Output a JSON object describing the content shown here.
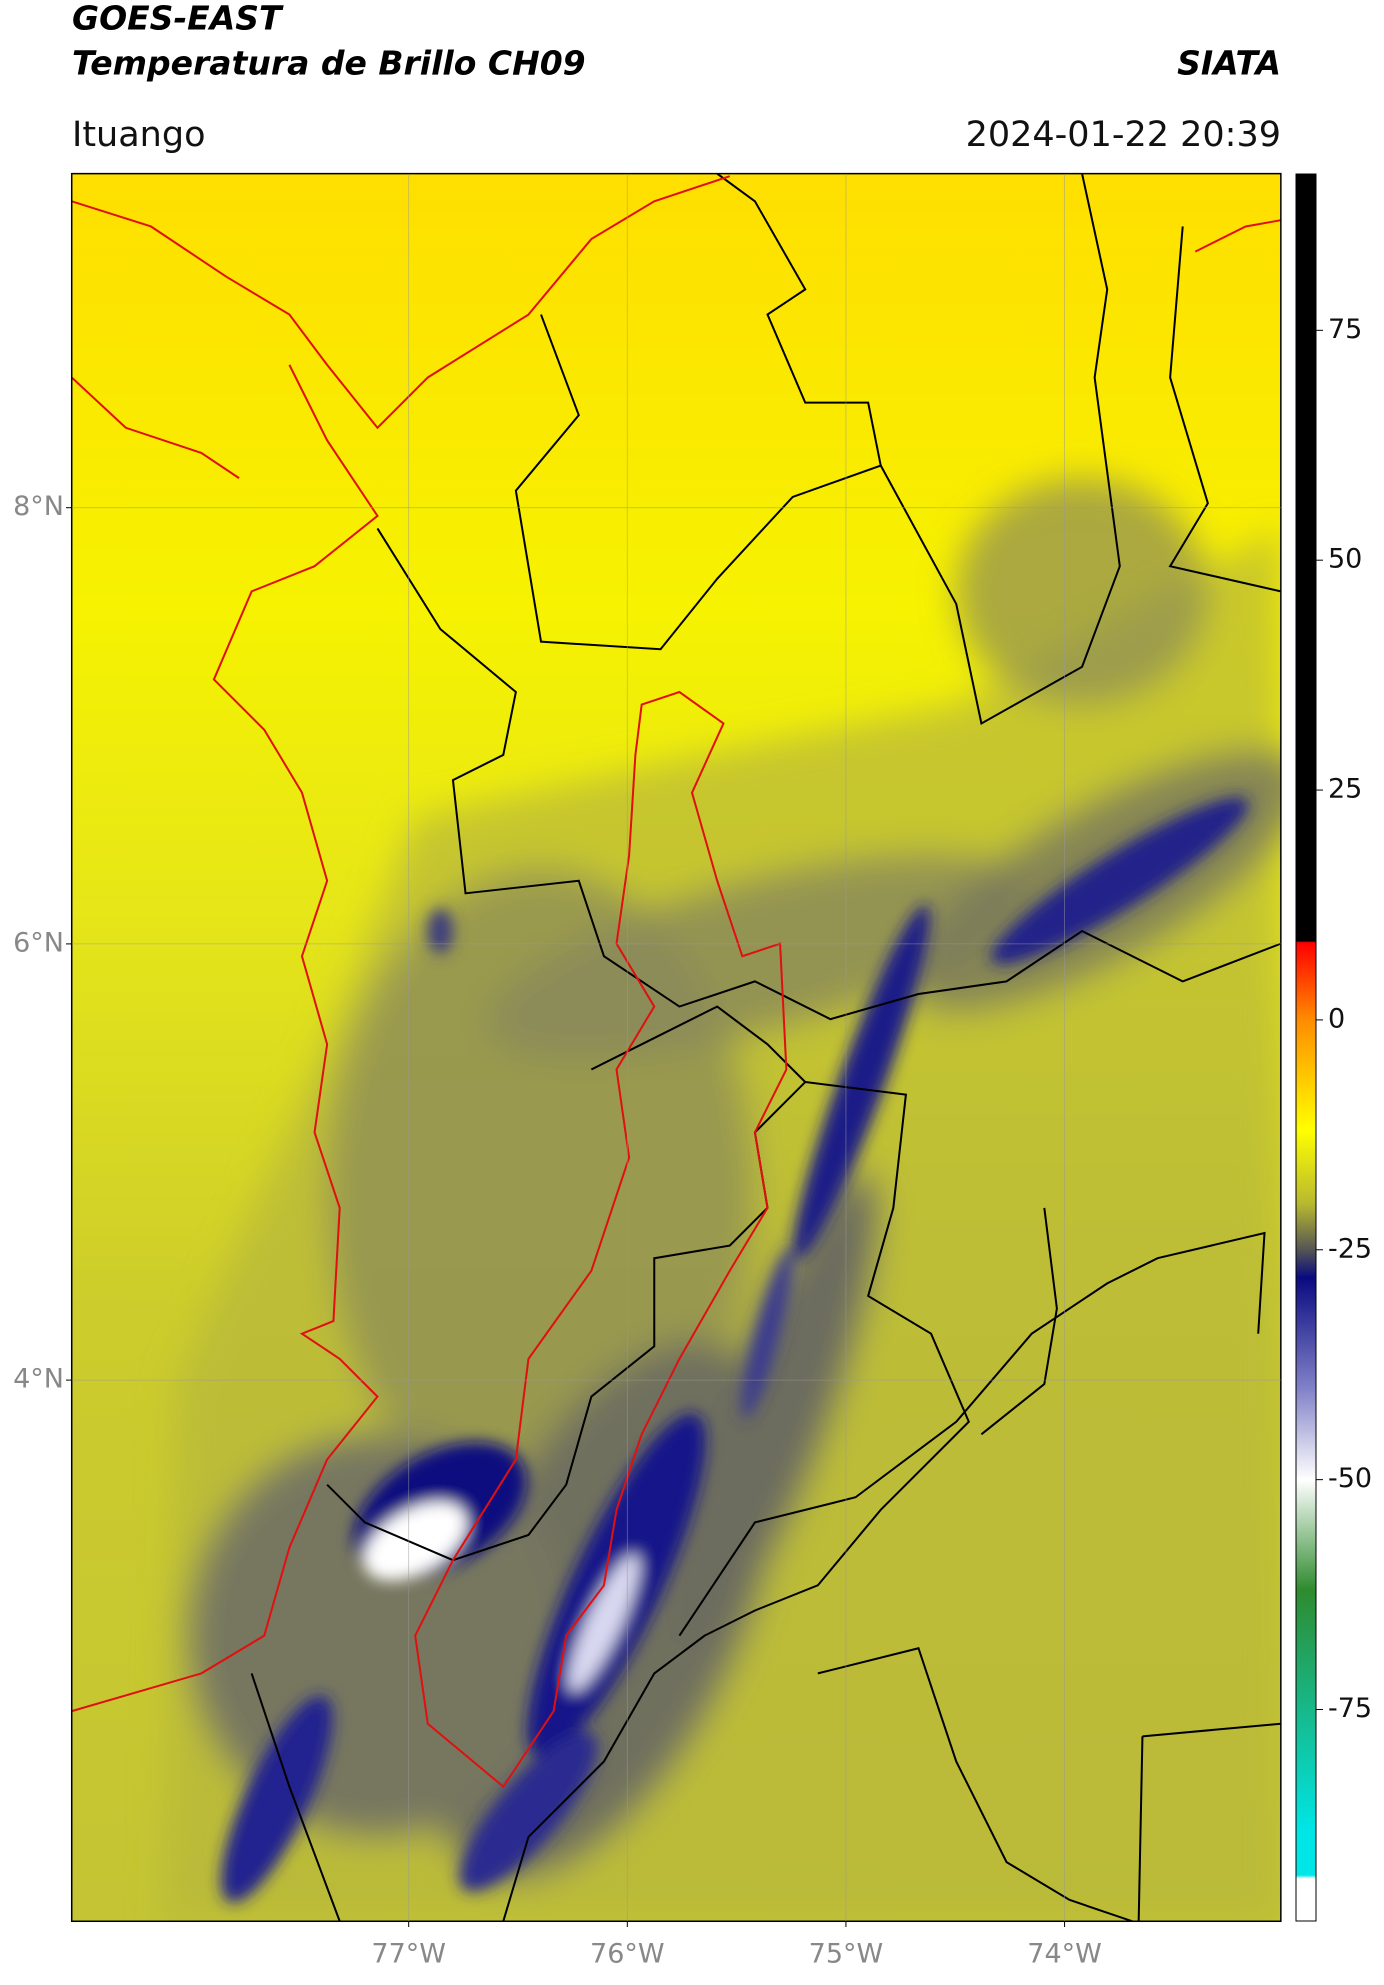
{
  "chart_data": {
    "type": "map",
    "title": "GOES-EAST",
    "subtitle": "Temperatura de Brillo CH09",
    "source": "SIATA",
    "location": "Ituango",
    "timestamp": "2024-01-22 20:39",
    "xlim": [
      -78.54,
      -73.01
    ],
    "xticks": [
      {
        "value": -77,
        "label": "77°W"
      },
      {
        "value": -76,
        "label": "76°W"
      },
      {
        "value": -75,
        "label": "75°W"
      },
      {
        "value": -74,
        "label": "74°W"
      }
    ],
    "ylim": [
      1.52,
      9.53
    ],
    "yticks": [
      {
        "value": 8,
        "label": "8°N"
      },
      {
        "value": 6,
        "label": "6°N"
      },
      {
        "value": 4,
        "label": "4°N"
      }
    ],
    "grid": true,
    "colorbar": {
      "lim": [
        -98,
        92
      ],
      "ticks": [
        75,
        50,
        25,
        0,
        -25,
        -50,
        -75
      ],
      "colormap": [
        {
          "value": 92,
          "color": "#000000"
        },
        {
          "value": 8.6,
          "color": "#000000"
        },
        {
          "value": 8.4,
          "color": "#ff0000"
        },
        {
          "value": 0,
          "color": "#ff8c00"
        },
        {
          "value": -12,
          "color": "#ffff00"
        },
        {
          "value": -20,
          "color": "#b8b830"
        },
        {
          "value": -25,
          "color": "#555555"
        },
        {
          "value": -28,
          "color": "#0a0a80"
        },
        {
          "value": -40,
          "color": "#8080c8"
        },
        {
          "value": -50,
          "color": "#ffffff"
        },
        {
          "value": -62,
          "color": "#2e8b2e"
        },
        {
          "value": -88,
          "color": "#00e5e5"
        },
        {
          "value": -93,
          "color": "#00e5e5"
        },
        {
          "value": -93.4,
          "color": "#ffffff"
        },
        {
          "value": -98,
          "color": "#ffffff"
        }
      ]
    }
  }
}
